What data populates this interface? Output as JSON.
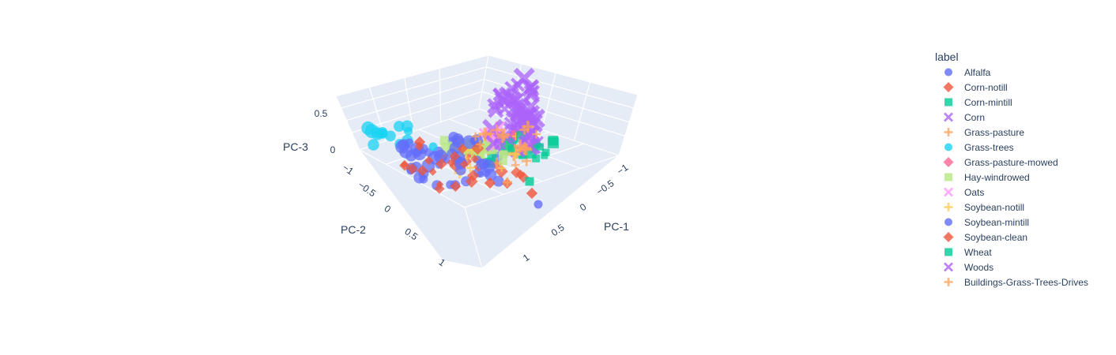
{
  "chart_data": {
    "type": "scatter3d",
    "axes": {
      "x": {
        "label": "PC-1",
        "ticks": [
          "−1",
          "−0.5",
          "0",
          "0.5",
          "1"
        ],
        "range": [
          -1,
          1
        ]
      },
      "y": {
        "label": "PC-2",
        "ticks": [
          "−1",
          "−0.5",
          "0",
          "0.5",
          "1"
        ],
        "range": [
          -1,
          1
        ]
      },
      "z": {
        "label": "PC-3",
        "ticks": [
          "0",
          "0.5"
        ],
        "range": [
          -0.6,
          0.75
        ]
      }
    },
    "legend_title": "label",
    "legend_position": "right",
    "series": [
      {
        "name": "Alfalfa",
        "symbol": "circle",
        "color": "#636efa"
      },
      {
        "name": "Corn-notill",
        "symbol": "diamond",
        "color": "#EF553B"
      },
      {
        "name": "Corn-mintill",
        "symbol": "square",
        "color": "#00cc96"
      },
      {
        "name": "Corn",
        "symbol": "x",
        "color": "#ab63fa"
      },
      {
        "name": "Grass-pasture",
        "symbol": "cross",
        "color": "#FFA15A"
      },
      {
        "name": "Grass-trees",
        "symbol": "circle",
        "color": "#19d3f3"
      },
      {
        "name": "Grass-pasture-mowed",
        "symbol": "diamond",
        "color": "#FF6692"
      },
      {
        "name": "Hay-windrowed",
        "symbol": "square",
        "color": "#B6E880"
      },
      {
        "name": "Oats",
        "symbol": "x",
        "color": "#FF97FF"
      },
      {
        "name": "Soybean-notill",
        "symbol": "cross",
        "color": "#FECB52"
      },
      {
        "name": "Soybean-mintill",
        "symbol": "circle",
        "color": "#636efa"
      },
      {
        "name": "Soybean-clean",
        "symbol": "diamond",
        "color": "#EF553B"
      },
      {
        "name": "Wheat",
        "symbol": "square",
        "color": "#00cc96"
      },
      {
        "name": "Woods",
        "symbol": "x",
        "color": "#ab63fa"
      },
      {
        "name": "Buildings-Grass-Trees-Drives",
        "symbol": "cross",
        "color": "#FFA15A"
      }
    ]
  }
}
